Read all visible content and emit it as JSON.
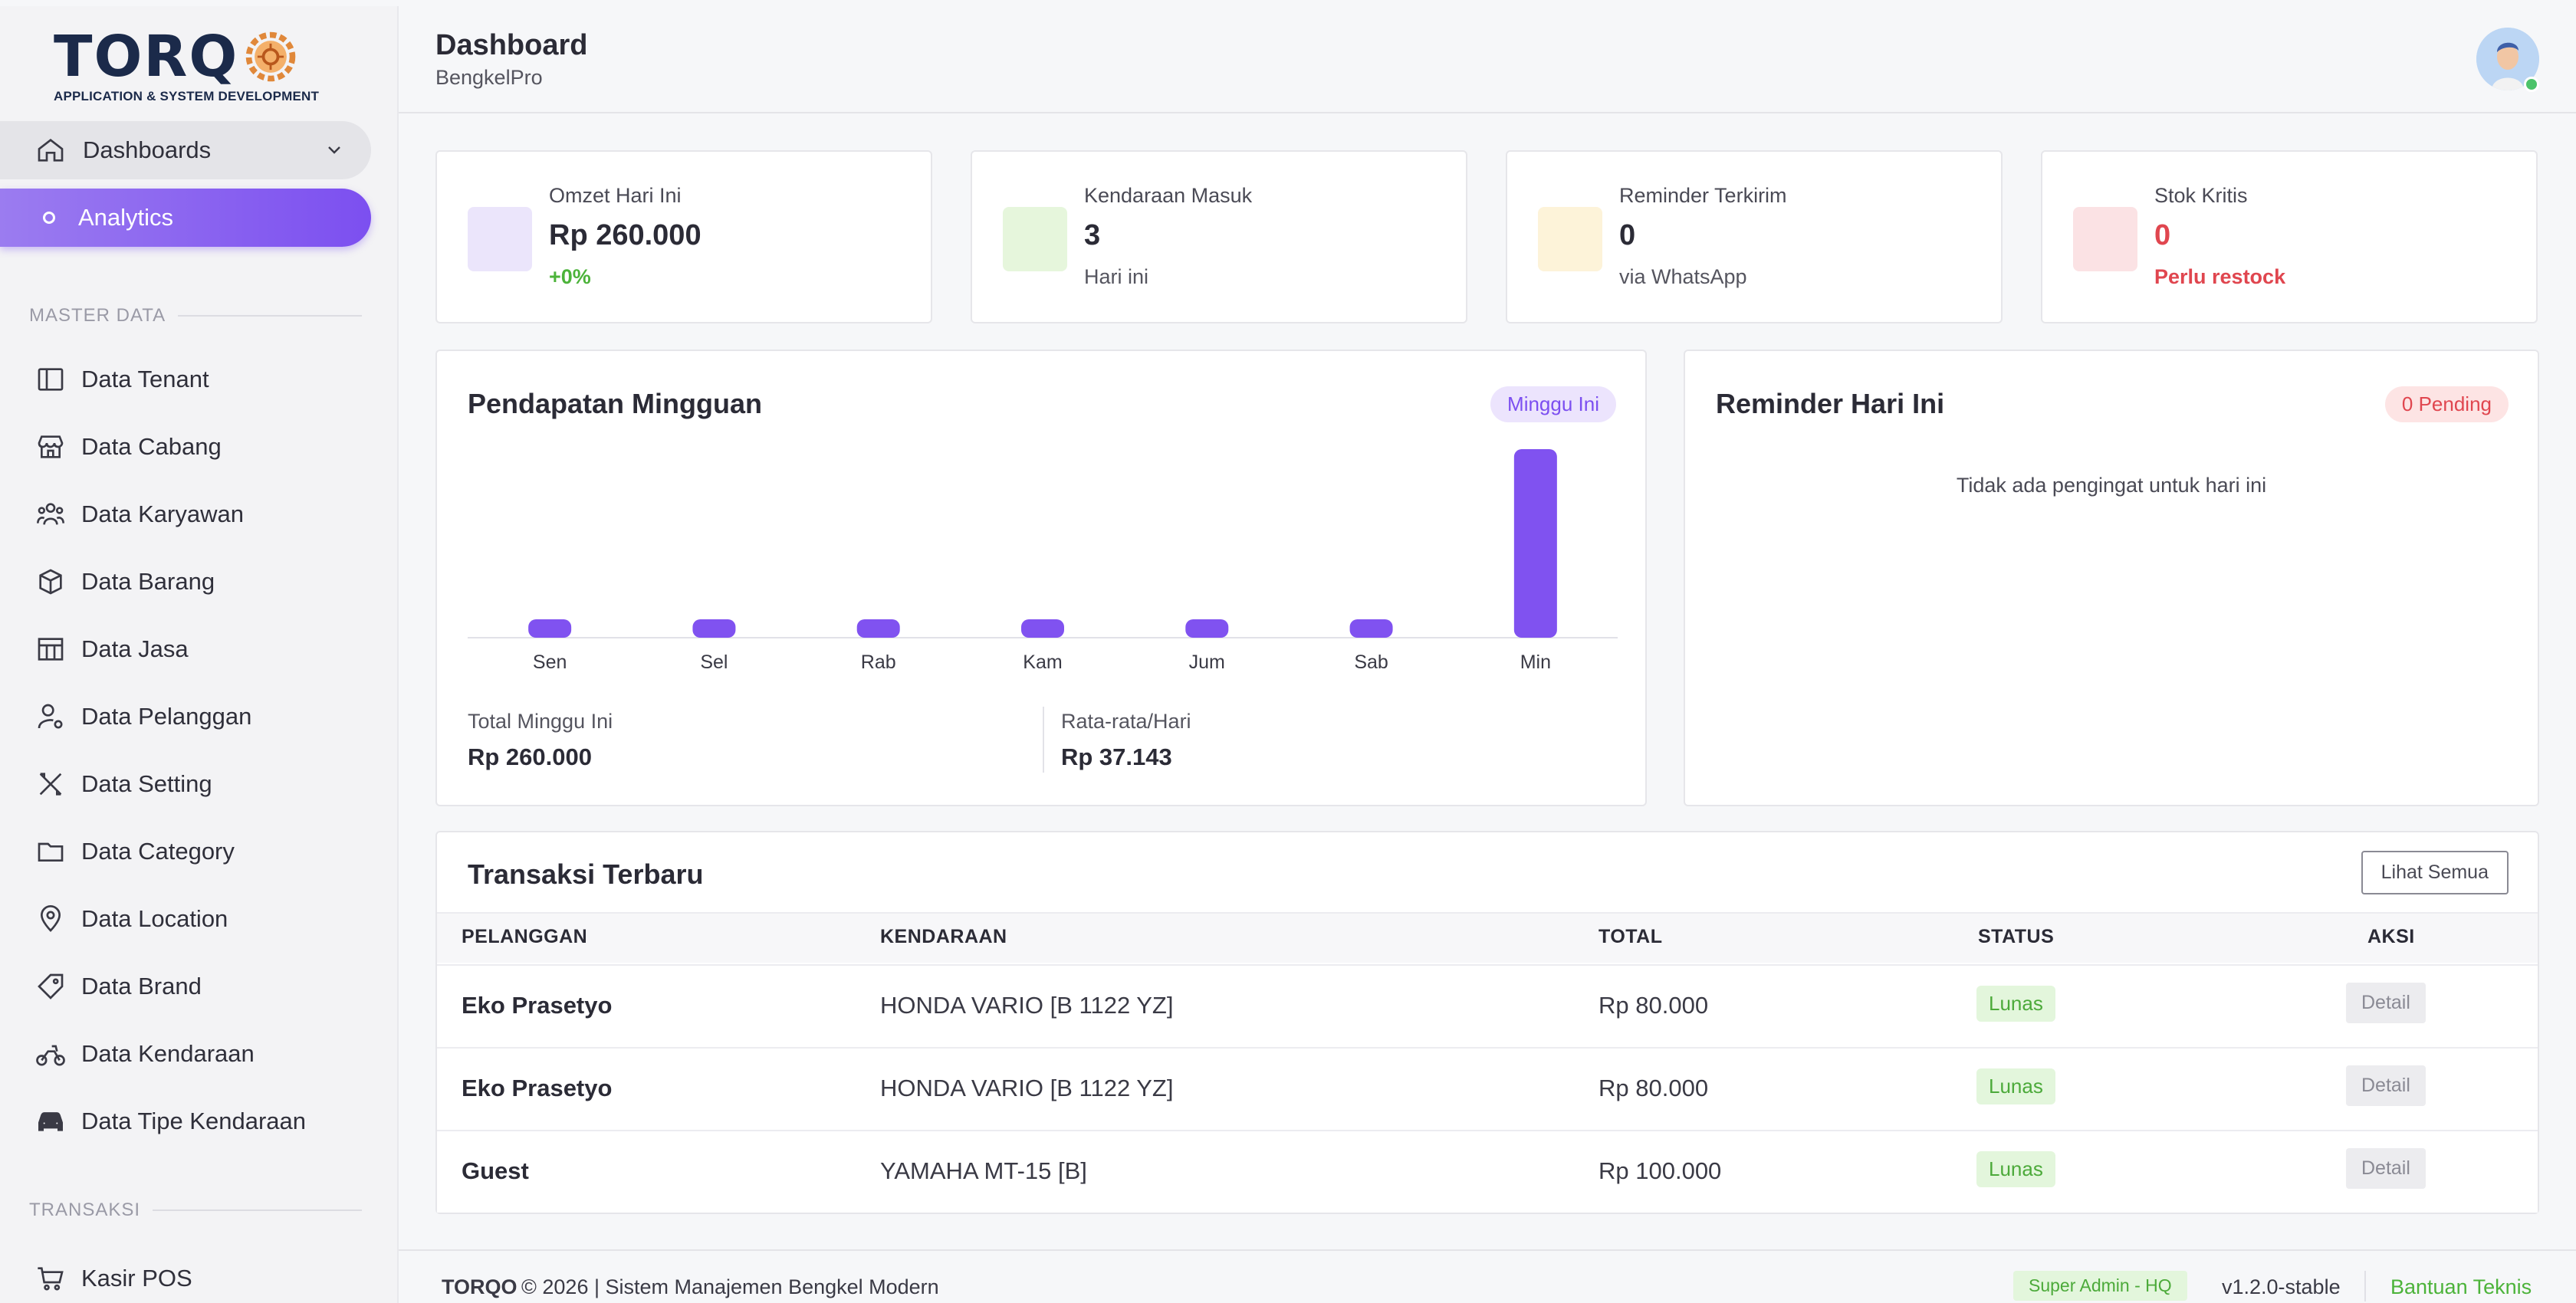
{
  "brand": {
    "name": "TORQ",
    "tagline": "APPLICATION & SYSTEM DEVELOPMENT"
  },
  "header": {
    "title": "Dashboard",
    "subtitle": "BengkelPro"
  },
  "sidebar": {
    "dashboards_label": "Dashboards",
    "analytics_label": "Analytics",
    "master_section": "MASTER DATA",
    "master_items": [
      {
        "label": "Data Tenant",
        "icon": "layout-icon"
      },
      {
        "label": "Data Cabang",
        "icon": "store-icon"
      },
      {
        "label": "Data Karyawan",
        "icon": "users-icon"
      },
      {
        "label": "Data Barang",
        "icon": "box-icon"
      },
      {
        "label": "Data Jasa",
        "icon": "grid-icon"
      },
      {
        "label": "Data Pelanggan",
        "icon": "user-cog-icon"
      },
      {
        "label": "Data Setting",
        "icon": "tools-icon"
      },
      {
        "label": "Data Category",
        "icon": "folder-icon"
      },
      {
        "label": "Data Location",
        "icon": "map-pin-icon"
      },
      {
        "label": "Data Brand",
        "icon": "tag-icon"
      },
      {
        "label": "Data Kendaraan",
        "icon": "motorbike-icon"
      },
      {
        "label": "Data Tipe Kendaraan",
        "icon": "car-icon"
      }
    ],
    "transaksi_section": "TRANSAKSI",
    "transaksi_items": [
      {
        "label": "Kasir POS",
        "icon": "cart-icon"
      }
    ]
  },
  "stats": [
    {
      "label": "Omzet Hari Ini",
      "value": "Rp 260.000",
      "sub": "+0%",
      "swatch": "#ebe5fb",
      "sub_color": "#4cb33a"
    },
    {
      "label": "Kendaraan Masuk",
      "value": "3",
      "sub": "Hari ini",
      "swatch": "#e6f6dc",
      "sub_color": "#55555f"
    },
    {
      "label": "Reminder Terkirim",
      "value": "0",
      "sub": "via WhatsApp",
      "swatch": "#fdf3d9",
      "sub_color": "#55555f"
    },
    {
      "label": "Stok Kritis",
      "value": "0",
      "sub": "Perlu restock",
      "swatch": "#fbe2e4",
      "sub_color": "#e0464f",
      "value_color": "#e0464f"
    }
  ],
  "weekly": {
    "title": "Pendapatan Mingguan",
    "badge": "Minggu Ini",
    "total_label": "Total Minggu Ini",
    "total_value": "Rp 260.000",
    "avg_label": "Rata-rata/Hari",
    "avg_value": "Rp 37.143"
  },
  "chart_data": {
    "type": "bar",
    "categories": [
      "Sen",
      "Sel",
      "Rab",
      "Kam",
      "Jum",
      "Sab",
      "Min"
    ],
    "values": [
      0,
      0,
      0,
      0,
      0,
      0,
      260000
    ],
    "title": "Pendapatan Mingguan",
    "xlabel": "",
    "ylabel": "",
    "ylim": [
      0,
      260000
    ],
    "grid": false,
    "color": "#8052f0"
  },
  "reminder": {
    "title": "Reminder Hari Ini",
    "badge": "0 Pending",
    "empty_text": "Tidak ada pengingat untuk hari ini"
  },
  "transactions": {
    "title": "Transaksi Terbaru",
    "view_all": "Lihat Semua",
    "columns": [
      "PELANGGAN",
      "KENDARAAN",
      "TOTAL",
      "STATUS",
      "AKSI"
    ],
    "rows": [
      {
        "customer": "Eko Prasetyo",
        "vehicle": "HONDA VARIO [B 1122 YZ]",
        "total": "Rp 80.000",
        "status": "Lunas",
        "action": "Detail"
      },
      {
        "customer": "Eko Prasetyo",
        "vehicle": "HONDA VARIO [B 1122 YZ]",
        "total": "Rp 80.000",
        "status": "Lunas",
        "action": "Detail"
      },
      {
        "customer": "Guest",
        "vehicle": "YAMAHA MT-15 [B]",
        "total": "Rp 100.000",
        "status": "Lunas",
        "action": "Detail"
      }
    ]
  },
  "footer": {
    "brand": "TORQO",
    "copyright": "© 2026 | Sistem Manajemen Bengkel Modern",
    "role": "Super Admin - HQ",
    "version": "v1.2.0-stable",
    "help": "Bantuan Teknis"
  },
  "colors": {
    "accent": "#7c4ff0",
    "success": "#4cb33a",
    "danger": "#e0464f"
  }
}
